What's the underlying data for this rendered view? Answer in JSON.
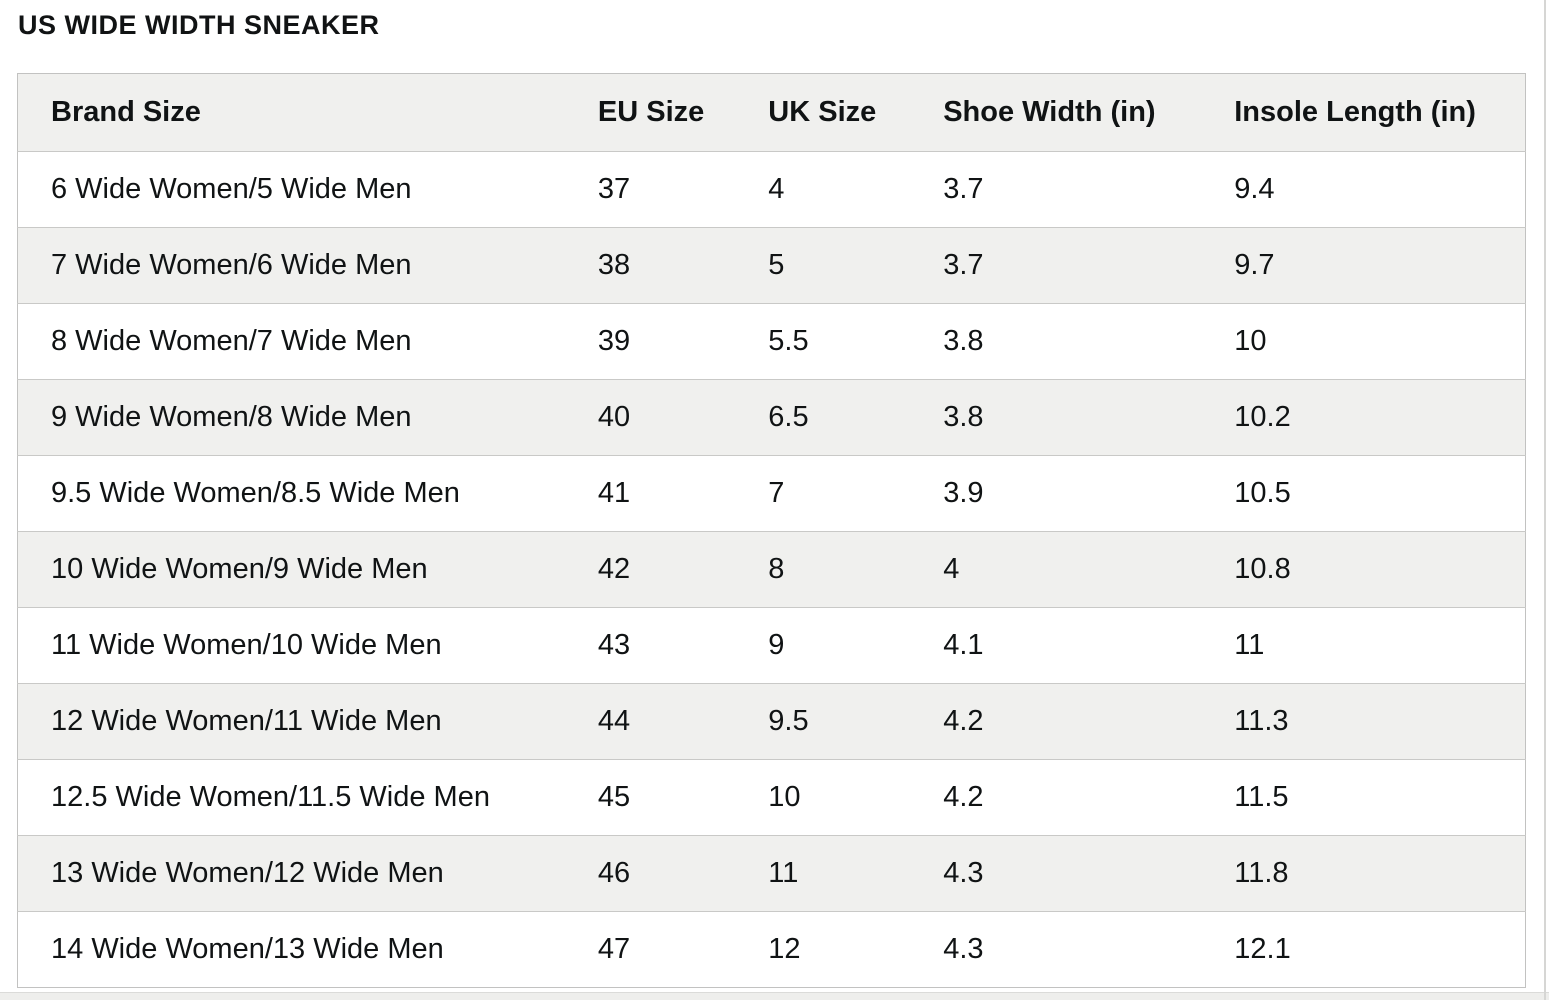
{
  "title": "US WIDE WIDTH SNEAKER",
  "chart_data": {
    "type": "table",
    "title": "US WIDE WIDTH SNEAKER",
    "columns": [
      "Brand Size",
      "EU Size",
      "UK Size",
      "Shoe Width (in)",
      "Insole Length (in)"
    ],
    "rows": [
      [
        "6 Wide Women/5 Wide Men",
        "37",
        "4",
        "3.7",
        "9.4"
      ],
      [
        "7 Wide Women/6 Wide Men",
        "38",
        "5",
        "3.7",
        "9.7"
      ],
      [
        "8 Wide Women/7 Wide Men",
        "39",
        "5.5",
        "3.8",
        "10"
      ],
      [
        "9 Wide Women/8 Wide Men",
        "40",
        "6.5",
        "3.8",
        "10.2"
      ],
      [
        "9.5 Wide Women/8.5 Wide Men",
        "41",
        "7",
        "3.9",
        "10.5"
      ],
      [
        "10 Wide Women/9 Wide Men",
        "42",
        "8",
        "4",
        "10.8"
      ],
      [
        "11 Wide Women/10 Wide Men",
        "43",
        "9",
        "4.1",
        "11"
      ],
      [
        "12 Wide Women/11 Wide Men",
        "44",
        "9.5",
        "4.2",
        "11.3"
      ],
      [
        "12.5 Wide Women/11.5 Wide Men",
        "45",
        "10",
        "4.2",
        "11.5"
      ],
      [
        "13 Wide Women/12 Wide Men",
        "46",
        "11",
        "4.3",
        "11.8"
      ],
      [
        "14 Wide Women/13 Wide Men",
        "47",
        "12",
        "4.3",
        "12.1"
      ]
    ]
  },
  "colors": {
    "text": "#101314",
    "header_bg": "#f0f0ee",
    "stripe_bg": "#f0f0ee",
    "row_bg": "#ffffff",
    "table_border": "#c2c2c1",
    "page_bg": "#ffffff",
    "bottom_strip": "#eeeeec",
    "right_edge": "#d6d6d4"
  }
}
